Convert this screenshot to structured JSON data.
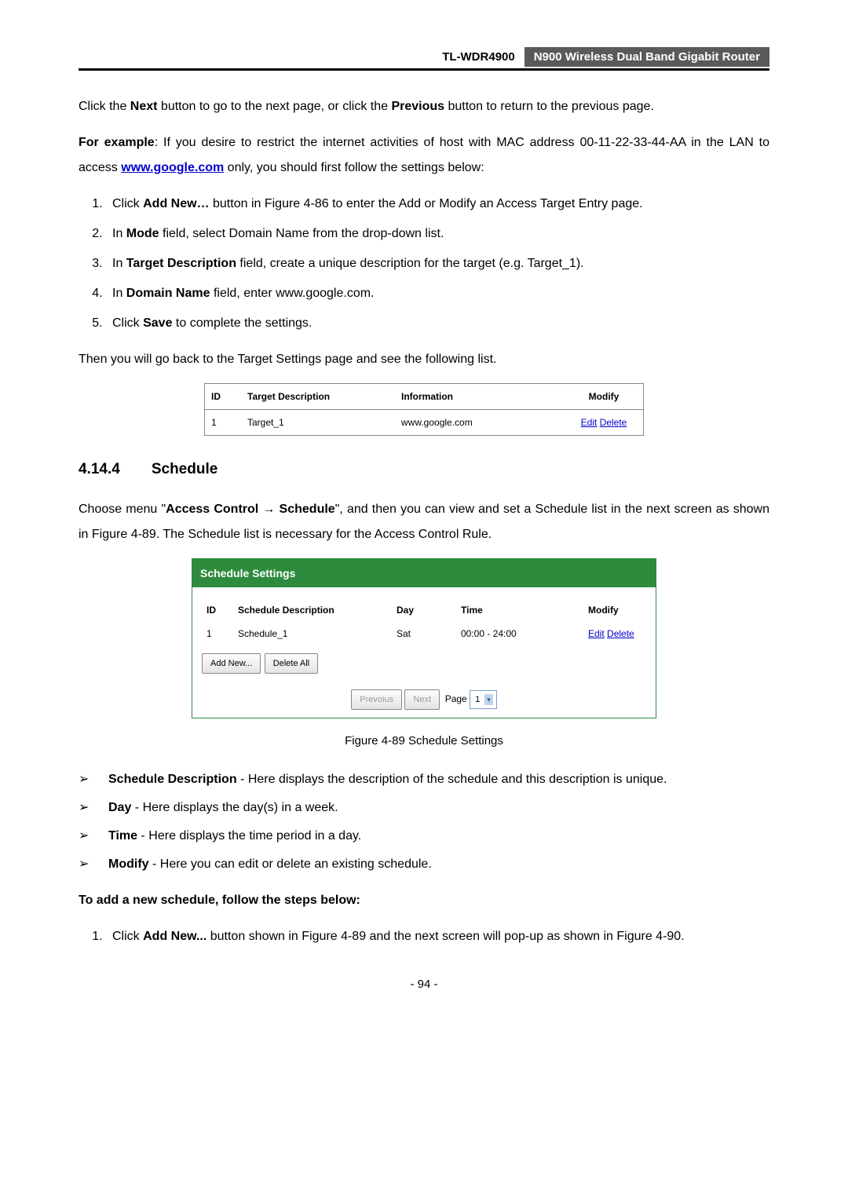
{
  "header": {
    "model": "TL-WDR4900",
    "product": "N900 Wireless Dual Band Gigabit Router"
  },
  "intro": {
    "p1a": "Click the ",
    "p1_next": "Next",
    "p1b": " button to go to the next page, or click the ",
    "p1_prev": "Previous",
    "p1c": " button to return to the previous page.",
    "p2a": "For example",
    "p2b": ": If you desire to restrict the internet activities of host with MAC address 00-11-22-33-44-AA in the LAN to access ",
    "p2_link": "www.google.com",
    "p2c": " only, you should first follow the settings below:"
  },
  "steps1": {
    "s1a": "Click ",
    "s1b": "Add New…",
    "s1c": " button in Figure 4-86 to enter the Add or Modify an Access Target Entry page.",
    "s2a": "In ",
    "s2b": "Mode",
    "s2c": " field, select Domain Name from the drop-down list.",
    "s3a": "In ",
    "s3b": "Target Description",
    "s3c": " field, create a unique description for the target (e.g. Target_1).",
    "s4a": "In ",
    "s4b": "Domain Name",
    "s4c": " field, enter www.google.com.",
    "s5a": "Click ",
    "s5b": "Save",
    "s5c": " to complete the settings."
  },
  "thenline": "Then you will go back to the Target Settings page and see the following list.",
  "table1": {
    "headers": {
      "id": "ID",
      "desc": "Target Description",
      "info": "Information",
      "mod": "Modify"
    },
    "row": {
      "id": "1",
      "desc": "Target_1",
      "info": "www.google.com",
      "edit": "Edit",
      "del": "Delete"
    }
  },
  "section": {
    "num": "4.14.4",
    "title": "Schedule",
    "p1a": "Choose menu \"",
    "p1b": "Access Control",
    "p1arrow": " → ",
    "p1c": "Schedule",
    "p1d": "\", and then you can view and set a Schedule list in the next screen as shown in Figure 4-89. The Schedule list is necessary for the Access Control Rule."
  },
  "panel": {
    "title": "Schedule Settings",
    "headers": {
      "id": "ID",
      "desc": "Schedule Description",
      "day": "Day",
      "time": "Time",
      "mod": "Modify"
    },
    "row": {
      "id": "1",
      "desc": "Schedule_1",
      "day": "Sat",
      "time": "00:00 - 24:00",
      "edit": "Edit",
      "del": "Delete"
    },
    "buttons": {
      "add": "Add New...",
      "delall": "Delete All",
      "prev": "Prevoius",
      "next": "Next"
    },
    "pager": {
      "label": "Page",
      "value": "1"
    }
  },
  "caption": "Figure 4-89 Schedule Settings",
  "bullets": {
    "b1a": "Schedule Description",
    "b1b": " - Here displays the description of the schedule and this description is unique.",
    "b2a": "Day",
    "b2b": " - Here displays the day(s) in a week.",
    "b3a": "Time",
    "b3b": " - Here displays the time period in a day.",
    "b4a": "Modify",
    "b4b": " - Here you can edit or delete an existing schedule."
  },
  "addnew": {
    "heading": "To add a new schedule, follow the steps below:",
    "s1a": "Click ",
    "s1b": "Add New...",
    "s1c": " button shown in Figure 4-89 and the next screen will pop-up as shown in Figure 4-90."
  },
  "pagenum": "- 94 -"
}
